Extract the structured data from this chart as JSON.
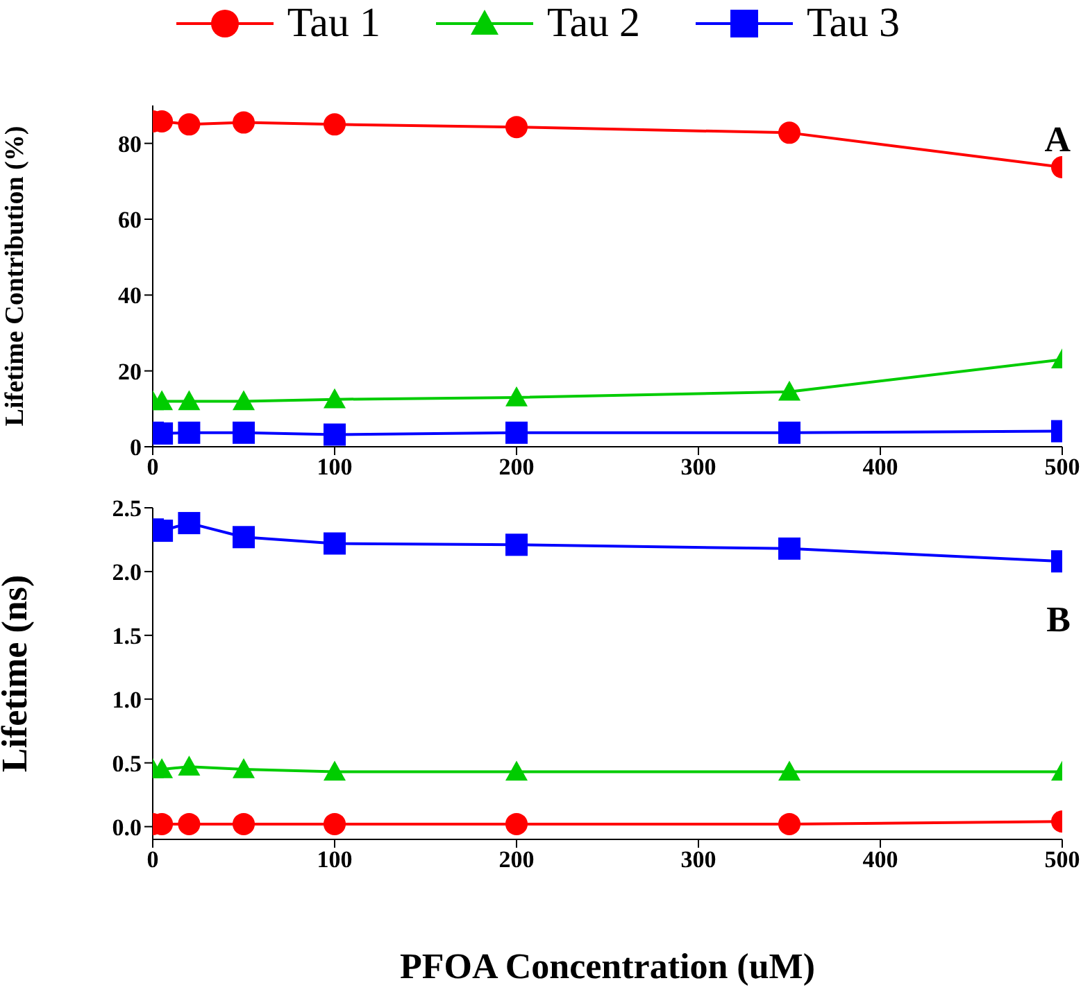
{
  "chart_data": [
    {
      "type": "line",
      "ylabel": "Lifetime Contribution (%)",
      "annotations": [
        "A"
      ],
      "legend": "top",
      "x": [
        0,
        5,
        20,
        50,
        100,
        200,
        350,
        500
      ],
      "xlim": [
        0,
        500
      ],
      "xticks": [
        0,
        100,
        200,
        300,
        400,
        500
      ],
      "ylim": [
        0,
        90
      ],
      "yticks": [
        0,
        20,
        40,
        60,
        80
      ],
      "grid": false,
      "series": [
        {
          "name": "Tau 1",
          "color": "#ff0000",
          "marker": "circle",
          "values": [
            85.8,
            85.8,
            85,
            85.5,
            85,
            84.3,
            82.8,
            73.7
          ]
        },
        {
          "name": "Tau 2",
          "color": "#00cc00",
          "marker": "triangle",
          "values": [
            12,
            12,
            12,
            12,
            12.5,
            13,
            14.5,
            23
          ]
        },
        {
          "name": "Tau 3",
          "color": "#0000ff",
          "marker": "square",
          "values": [
            3.7,
            3.5,
            3.7,
            3.7,
            3.2,
            3.7,
            3.7,
            4.1
          ]
        }
      ]
    },
    {
      "type": "line",
      "ylabel": "Lifetime (ns)",
      "xlabel": "PFOA Concentration (uM)",
      "annotations": [
        "B"
      ],
      "legend": false,
      "x": [
        0,
        5,
        20,
        50,
        100,
        200,
        350,
        500
      ],
      "xlim": [
        0,
        500
      ],
      "xticks": [
        0,
        100,
        200,
        300,
        400,
        500
      ],
      "ylim": [
        -0.1,
        2.5
      ],
      "yticks": [
        {
          "value": 0,
          "label": "0.0"
        },
        0.5,
        {
          "value": 1,
          "label": "1.0"
        },
        1.5,
        {
          "value": 2,
          "label": "2.0"
        },
        2.5
      ],
      "grid": false,
      "series": [
        {
          "color": "#ff0000",
          "marker": "circle",
          "values": [
            0.02,
            0.02,
            0.02,
            0.02,
            0.02,
            0.02,
            0.02,
            0.04
          ]
        },
        {
          "color": "#00cc00",
          "marker": "triangle",
          "values": [
            0.45,
            0.45,
            0.47,
            0.45,
            0.43,
            0.43,
            0.43,
            0.43
          ]
        },
        {
          "color": "#0000ff",
          "marker": "square",
          "values": [
            2.33,
            2.32,
            2.38,
            2.27,
            2.22,
            2.21,
            2.18,
            2.08
          ]
        }
      ]
    }
  ]
}
